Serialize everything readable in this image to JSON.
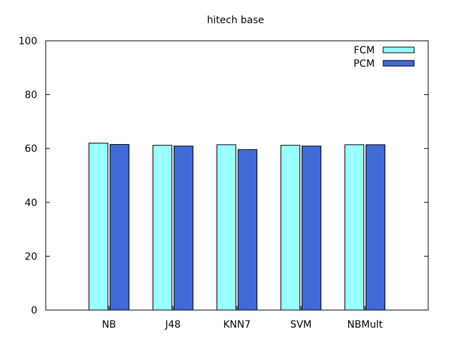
{
  "chart_data": {
    "type": "bar",
    "title": "hitech base",
    "xlabel": "",
    "ylabel": "",
    "categories": [
      "NB",
      "J48",
      "KNN7",
      "SVM",
      "NBMult"
    ],
    "series": [
      {
        "name": "FCM",
        "color": "#99ffff",
        "values": [
          62.0,
          61.2,
          61.4,
          61.2,
          61.4
        ]
      },
      {
        "name": "PCM",
        "color": "#4169d8",
        "values": [
          61.5,
          60.9,
          59.6,
          60.9,
          61.4
        ]
      }
    ],
    "ylim": [
      0,
      100
    ],
    "yticks": [
      0,
      20,
      40,
      60,
      80,
      100
    ],
    "legend_position": "top-right",
    "grid": false
  }
}
